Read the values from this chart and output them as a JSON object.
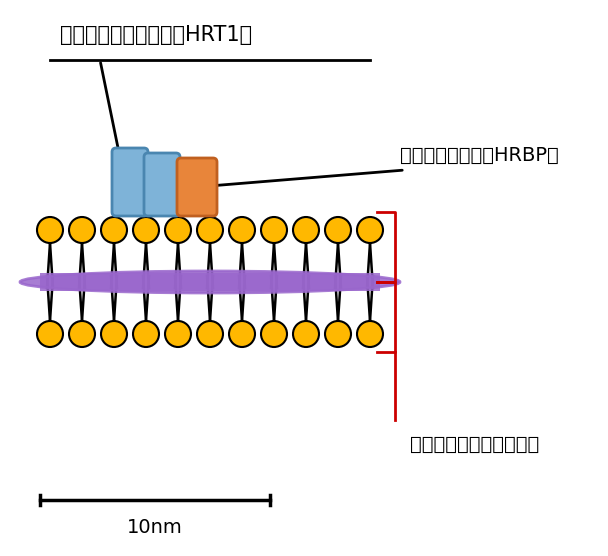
{
  "title": "",
  "bg_color": "#ffffff",
  "label_hrt1": "天然ゴム生合成酵素（HRT1）",
  "label_hrbp": "補助タンパク質（HRBP）",
  "label_nanodisc": "人工膜（ナノディスク）",
  "label_scale": "10nm",
  "lipid_color": "#FFB800",
  "lipid_edge_color": "#000000",
  "tail_color": "#000000",
  "purple_belt_color": "#9966CC",
  "protein_blue_color": "#7EB3D8",
  "protein_blue_edge": "#4A86B0",
  "protein_orange_color": "#E8853A",
  "protein_orange_edge": "#C06020",
  "bracket_color": "#CC0000",
  "arrow_color": "#000000",
  "line_color": "#000000",
  "scale_bar_color": "#000000",
  "text_color": "#000000"
}
